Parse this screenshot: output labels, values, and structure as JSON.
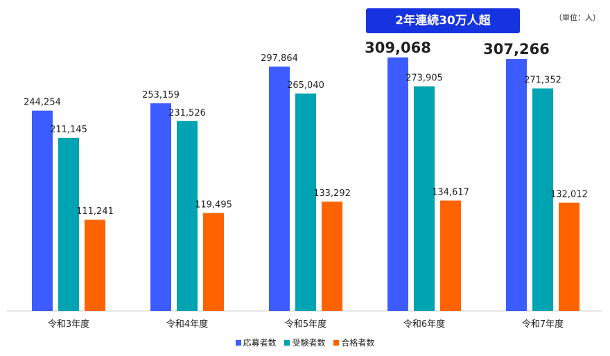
{
  "banner": "2年連続30万人超",
  "unit": "（単位：人）",
  "chart_data": {
    "type": "bar",
    "categories": [
      "令和3年度",
      "令和4年度",
      "令和5年度",
      "令和6年度",
      "令和7年度"
    ],
    "series": [
      {
        "name": "応募者数",
        "color": "#3c5cff",
        "values": [
          244254,
          253159,
          297864,
          309068,
          307266
        ]
      },
      {
        "name": "受験者数",
        "color": "#00a3b1",
        "values": [
          211145,
          231526,
          265040,
          273905,
          271352
        ]
      },
      {
        "name": "合格者数",
        "color": "#ff6300",
        "values": [
          111241,
          119495,
          133292,
          134617,
          132012
        ]
      }
    ],
    "data_labels": [
      [
        "244,254",
        "253,159",
        "297,864",
        "309,068",
        "307,266"
      ],
      [
        "211,145",
        "231,526",
        "265,040",
        "273,905",
        "271,352"
      ],
      [
        "111,241",
        "119,495",
        "133,292",
        "134,617",
        "132,012"
      ]
    ],
    "highlighted_labels": [
      [
        0,
        3
      ],
      [
        0,
        4
      ]
    ],
    "ylim": [
      0,
      320000
    ],
    "grid": false,
    "legend_position": "bottom"
  }
}
